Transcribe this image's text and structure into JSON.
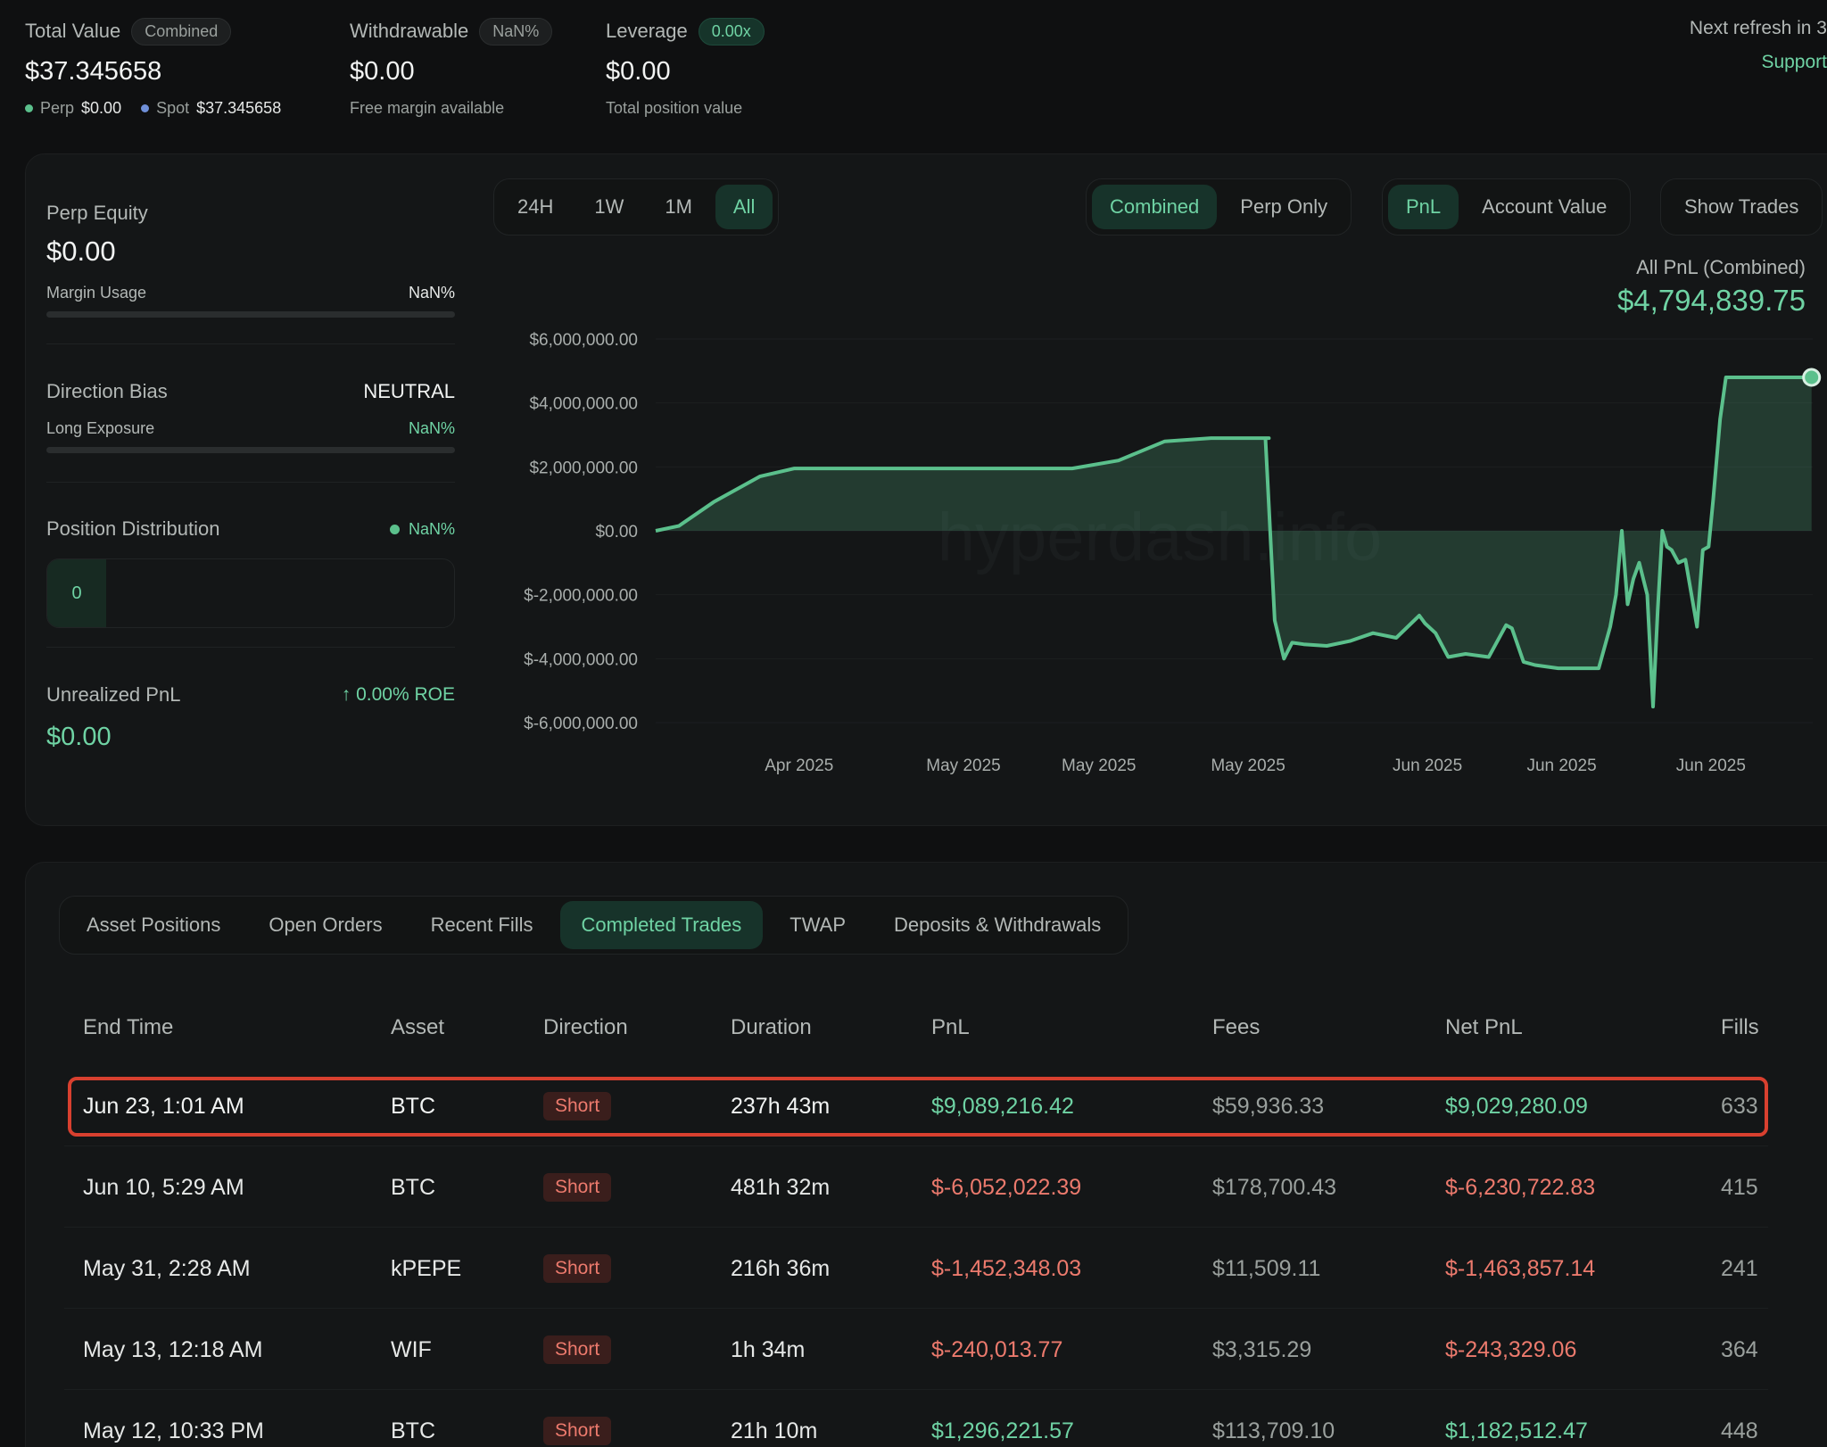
{
  "summary": {
    "total_value": {
      "label": "Total Value",
      "pill": "Combined",
      "value": "$37.345658",
      "perp_label": "Perp",
      "perp_value": "$0.00",
      "spot_label": "Spot",
      "spot_value": "$37.345658"
    },
    "withdrawable": {
      "label": "Withdrawable",
      "pill": "NaN%",
      "value": "$0.00",
      "sub": "Free margin available"
    },
    "leverage": {
      "label": "Leverage",
      "pill": "0.00x",
      "value": "$0.00",
      "sub": "Total position value"
    },
    "refresh": "Next refresh in 3",
    "support": "Support"
  },
  "side": {
    "perp_equity_label": "Perp Equity",
    "perp_equity_value": "$0.00",
    "margin_usage_label": "Margin Usage",
    "margin_usage_value": "NaN%",
    "direction_label": "Direction Bias",
    "direction_value": "NEUTRAL",
    "long_label": "Long Exposure",
    "long_value": "NaN%",
    "distribution_label": "Position Distribution",
    "distribution_value": "NaN%",
    "distribution_count": "0",
    "upnl_label": "Unrealized PnL",
    "roe": "↑ 0.00% ROE",
    "upnl_value": "$0.00"
  },
  "ranges": [
    "24H",
    "1W",
    "1M",
    "All"
  ],
  "active_range": "All",
  "mode_toggle": [
    "Combined",
    "Perp Only"
  ],
  "metric_toggle": [
    "PnL",
    "Account Value"
  ],
  "show_trades": "Show Trades",
  "pnl_title": "All PnL (Combined)",
  "pnl_value": "$4,794,839.75",
  "watermark": "hyperdash.info",
  "chart_data": {
    "type": "area",
    "title": "",
    "xlabel": "",
    "ylabel": "",
    "ylim": [
      -6000000,
      6000000
    ],
    "y_ticks": [
      6000000,
      4000000,
      2000000,
      0,
      -2000000,
      -4000000,
      -6000000
    ],
    "y_tick_labels": [
      "$6,000,000.00",
      "$4,000,000.00",
      "$2,000,000.00",
      "$0.00",
      "$-2,000,000.00",
      "$-4,000,000.00",
      "$-6,000,000.00"
    ],
    "x_tick_labels": [
      "Apr 2025",
      "May 2025",
      "May 2025",
      "May 2025",
      "Jun 2025",
      "Jun 2025",
      "Jun 2025"
    ],
    "x_tick_positions": [
      0.124,
      0.266,
      0.383,
      0.512,
      0.667,
      0.783,
      0.912
    ],
    "color": "#5bc08c",
    "x": [
      0,
      0.02,
      0.05,
      0.09,
      0.12,
      0.2,
      0.36,
      0.4,
      0.44,
      0.48,
      0.53,
      0.527,
      0.535,
      0.543,
      0.55,
      0.56,
      0.58,
      0.6,
      0.62,
      0.64,
      0.66,
      0.665,
      0.674,
      0.685,
      0.7,
      0.72,
      0.735,
      0.74,
      0.75,
      0.76,
      0.78,
      0.8,
      0.815,
      0.825,
      0.83,
      0.835,
      0.84,
      0.845,
      0.85,
      0.857,
      0.862,
      0.866,
      0.87,
      0.874,
      0.878,
      0.884,
      0.89,
      0.9,
      0.905,
      0.91,
      0.914,
      0.92,
      0.925,
      0.932,
      0.94,
      0.95,
      0.96,
      0.999
    ],
    "values": [
      0,
      150000,
      900000,
      1700000,
      1950000,
      1950000,
      1950000,
      2200000,
      2800000,
      2900000,
      2900000,
      2900000,
      -2800000,
      -4000000,
      -3500000,
      -3550000,
      -3600000,
      -3450000,
      -3200000,
      -3350000,
      -2650000,
      -2900000,
      -3200000,
      -3950000,
      -3850000,
      -3950000,
      -2950000,
      -3050000,
      -4100000,
      -4200000,
      -4300000,
      -4300000,
      -4300000,
      -3000000,
      -2000000,
      0,
      -2300000,
      -1500000,
      -1000000,
      -2000000,
      -5500000,
      -2500000,
      0,
      -500000,
      -600000,
      -1000000,
      -900000,
      -3000000,
      -600000,
      -500000,
      1000000,
      3500000,
      4800000,
      4800000,
      4800000,
      4800000,
      4800000,
      4800000
    ]
  },
  "tabs": [
    "Asset Positions",
    "Open Orders",
    "Recent Fills",
    "Completed Trades",
    "TWAP",
    "Deposits & Withdrawals"
  ],
  "active_tab": "Completed Trades",
  "table": {
    "headers": [
      "End Time",
      "Asset",
      "Direction",
      "Duration",
      "PnL",
      "Fees",
      "Net PnL",
      "Fills"
    ],
    "rows": [
      {
        "end": "Jun 23, 1:01 AM",
        "asset": "BTC",
        "dir": "Short",
        "dur": "237h 43m",
        "pnl": "$9,089,216.42",
        "fees": "$59,936.33",
        "net": "$9,029,280.09",
        "fills": "633",
        "pos": true
      },
      {
        "end": "Jun 10, 5:29 AM",
        "asset": "BTC",
        "dir": "Short",
        "dur": "481h 32m",
        "pnl": "$-6,052,022.39",
        "fees": "$178,700.43",
        "net": "$-6,230,722.83",
        "fills": "415",
        "pos": false
      },
      {
        "end": "May 31, 2:28 AM",
        "asset": "kPEPE",
        "dir": "Short",
        "dur": "216h 36m",
        "pnl": "$-1,452,348.03",
        "fees": "$11,509.11",
        "net": "$-1,463,857.14",
        "fills": "241",
        "pos": false
      },
      {
        "end": "May 13, 12:18 AM",
        "asset": "WIF",
        "dir": "Short",
        "dur": "1h 34m",
        "pnl": "$-240,013.77",
        "fees": "$3,315.29",
        "net": "$-243,329.06",
        "fills": "364",
        "pos": false
      },
      {
        "end": "May 12, 10:33 PM",
        "asset": "BTC",
        "dir": "Short",
        "dur": "21h 10m",
        "pnl": "$1,296,221.57",
        "fees": "$113,709.10",
        "net": "$1,182,512.47",
        "fills": "448",
        "pos": true
      }
    ]
  }
}
